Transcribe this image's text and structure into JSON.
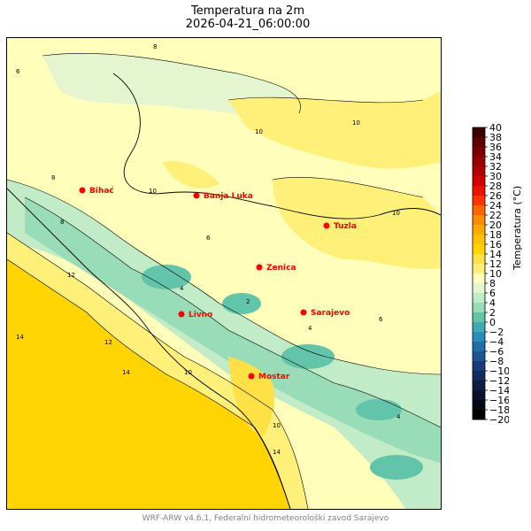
{
  "header": {
    "title": "Temperatura na 2m",
    "subtitle": "2026-04-21_06:00:00"
  },
  "colorbar": {
    "label": "Temperatura (°C)",
    "ticks": [
      "40",
      "38",
      "36",
      "34",
      "32",
      "30",
      "28",
      "26",
      "24",
      "22",
      "20",
      "18",
      "16",
      "14",
      "12",
      "10",
      "8",
      "6",
      "4",
      "2",
      "0",
      "−2",
      "−4",
      "−6",
      "−8",
      "−10",
      "−12",
      "−14",
      "−16",
      "−18",
      "−20"
    ],
    "colors": [
      "#3c0000",
      "#5e0000",
      "#7a0000",
      "#960000",
      "#b20000",
      "#d40000",
      "#ee1100",
      "#ff3300",
      "#ff6600",
      "#ff8c00",
      "#ffaa00",
      "#ffc000",
      "#ffd400",
      "#ffe045",
      "#fff07a",
      "#ffffbb",
      "#e4f5d0",
      "#c2ecc8",
      "#98dcb8",
      "#62c4a8",
      "#3fa9b5",
      "#2a8cb8",
      "#1f6ea8",
      "#1b5592",
      "#163d7a",
      "#122b5e",
      "#0e1d44",
      "#0a112c",
      "#060815",
      "#000000"
    ]
  },
  "map": {
    "contour_labels": [
      "6",
      "8",
      "10",
      "12",
      "14",
      "4",
      "2"
    ],
    "cities": [
      {
        "name": "Bihać"
      },
      {
        "name": "Banja Luka"
      },
      {
        "name": "Tuzla"
      },
      {
        "name": "Zenica"
      },
      {
        "name": "Livno"
      },
      {
        "name": "Sarajevo"
      },
      {
        "name": "Mostar"
      }
    ]
  },
  "footer": {
    "text": "WRF-ARW v4.6.1, Federalni hidrometeorološki zavod Sarajevo"
  }
}
